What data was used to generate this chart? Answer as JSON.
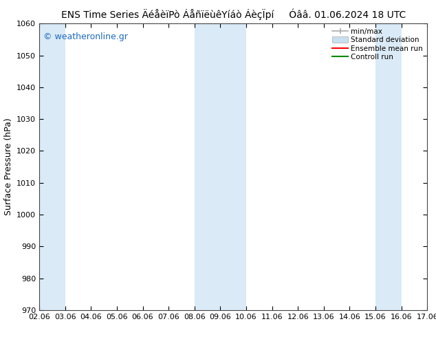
{
  "title": "ENS Time Series ÄéåèïPò ÁåñïëùêYíáò ÁèçÏpí     Óââ. 01.06.2024 18 UTC",
  "ylabel": "Surface Pressure (hPa)",
  "ylim": [
    970,
    1060
  ],
  "x_ticks": [
    "02.06",
    "03.06",
    "04.06",
    "05.06",
    "06.06",
    "07.06",
    "08.06",
    "09.06",
    "10.06",
    "11.06",
    "12.06",
    "13.06",
    "14.06",
    "15.06",
    "16.06",
    "17.06"
  ],
  "y_ticks": [
    970,
    980,
    990,
    1000,
    1010,
    1020,
    1030,
    1040,
    1050,
    1060
  ],
  "background_color": "#ffffff",
  "plot_bg_color": "#ffffff",
  "shaded_regions": [
    {
      "start": 0,
      "end": 1,
      "color": "#daeaf6"
    },
    {
      "start": 6,
      "end": 8,
      "color": "#daeaf6"
    },
    {
      "start": 13,
      "end": 14,
      "color": "#daeaf6"
    }
  ],
  "watermark_text": "© weatheronline.gr",
  "watermark_color": "#1a6abf",
  "legend_labels": [
    "min/max",
    "Standard deviation",
    "Ensemble mean run",
    "Controll run"
  ],
  "minmax_color": "#aaaaaa",
  "stddev_color": "#c8dff0",
  "ensemble_color": "#ff0000",
  "control_color": "#008800",
  "title_fontsize": 10,
  "axis_label_fontsize": 9,
  "tick_fontsize": 8,
  "watermark_fontsize": 9
}
